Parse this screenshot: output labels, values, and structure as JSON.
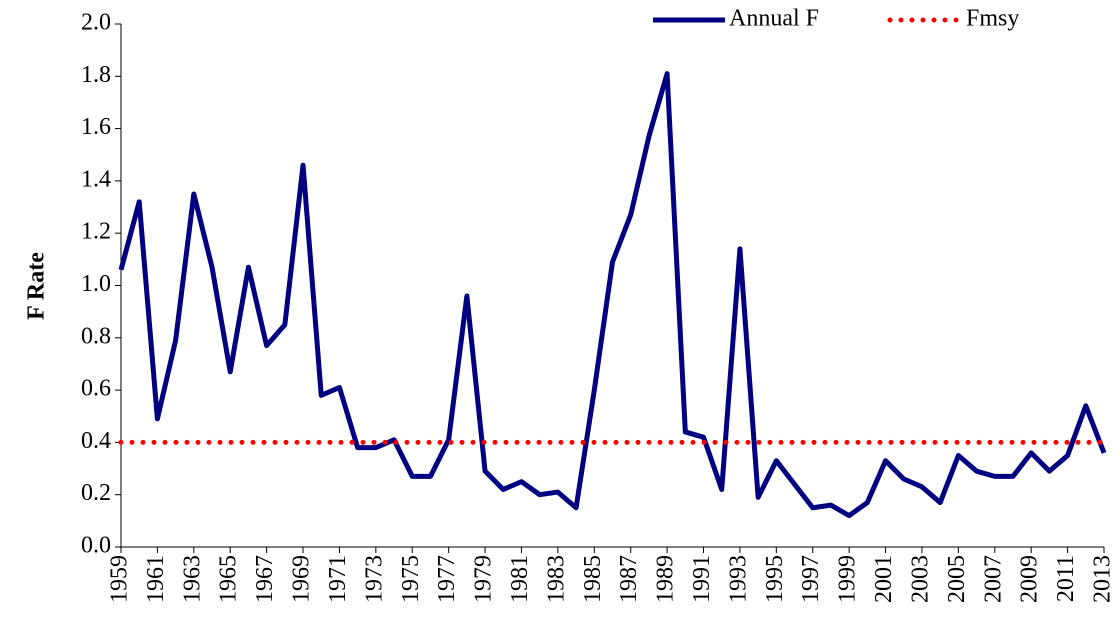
{
  "chart_data": {
    "type": "line",
    "y_label": "F Rate",
    "x": [
      1959,
      1960,
      1961,
      1962,
      1963,
      1964,
      1965,
      1966,
      1967,
      1968,
      1969,
      1970,
      1971,
      1972,
      1973,
      1974,
      1975,
      1976,
      1977,
      1978,
      1979,
      1980,
      1981,
      1982,
      1983,
      1984,
      1985,
      1986,
      1987,
      1988,
      1989,
      1990,
      1991,
      1992,
      1993,
      1994,
      1995,
      1996,
      1997,
      1998,
      1999,
      2000,
      2001,
      2002,
      2003,
      2004,
      2005,
      2006,
      2007,
      2008,
      2009,
      2010,
      2011,
      2012,
      2013
    ],
    "series": [
      {
        "name": "Annual F",
        "color": "#000080",
        "style": "solid",
        "values": [
          1.06,
          1.32,
          0.49,
          0.79,
          1.35,
          1.07,
          0.67,
          1.07,
          0.77,
          0.85,
          1.46,
          0.58,
          0.61,
          0.38,
          0.38,
          0.41,
          0.27,
          0.27,
          0.41,
          0.96,
          0.29,
          0.22,
          0.25,
          0.2,
          0.21,
          0.15,
          0.6,
          1.09,
          1.27,
          1.57,
          1.81,
          0.44,
          0.42,
          0.22,
          1.14,
          0.19,
          0.33,
          0.24,
          0.15,
          0.16,
          0.12,
          0.17,
          0.33,
          0.26,
          0.23,
          0.17,
          0.35,
          0.29,
          0.27,
          0.27,
          0.36,
          0.29,
          0.35,
          0.54,
          0.36
        ]
      },
      {
        "name": "Fmsy",
        "color": "#ff0000",
        "style": "dotted",
        "values": [
          0.4,
          0.4,
          0.4,
          0.4,
          0.4,
          0.4,
          0.4,
          0.4,
          0.4,
          0.4,
          0.4,
          0.4,
          0.4,
          0.4,
          0.4,
          0.4,
          0.4,
          0.4,
          0.4,
          0.4,
          0.4,
          0.4,
          0.4,
          0.4,
          0.4,
          0.4,
          0.4,
          0.4,
          0.4,
          0.4,
          0.4,
          0.4,
          0.4,
          0.4,
          0.4,
          0.4,
          0.4,
          0.4,
          0.4,
          0.4,
          0.4,
          0.4,
          0.4,
          0.4,
          0.4,
          0.4,
          0.4,
          0.4,
          0.4,
          0.4,
          0.4,
          0.4,
          0.4,
          0.4,
          0.4
        ]
      }
    ],
    "xlim": [
      1959,
      2013
    ],
    "xticks": [
      1959,
      1961,
      1963,
      1965,
      1967,
      1969,
      1971,
      1973,
      1975,
      1977,
      1979,
      1981,
      1983,
      1985,
      1987,
      1989,
      1991,
      1993,
      1995,
      1997,
      1999,
      2001,
      2003,
      2005,
      2007,
      2009,
      2011,
      2013
    ],
    "ylim": [
      0,
      2
    ],
    "yticks": [
      {
        "value": 0,
        "label": "0.0"
      },
      0.2,
      0.4,
      0.6,
      0.8,
      {
        "value": 1,
        "label": "1.0"
      },
      1.2,
      1.4,
      1.6,
      1.8,
      {
        "value": 2,
        "label": "2.0"
      }
    ],
    "grid": false,
    "legend": "upper right"
  }
}
